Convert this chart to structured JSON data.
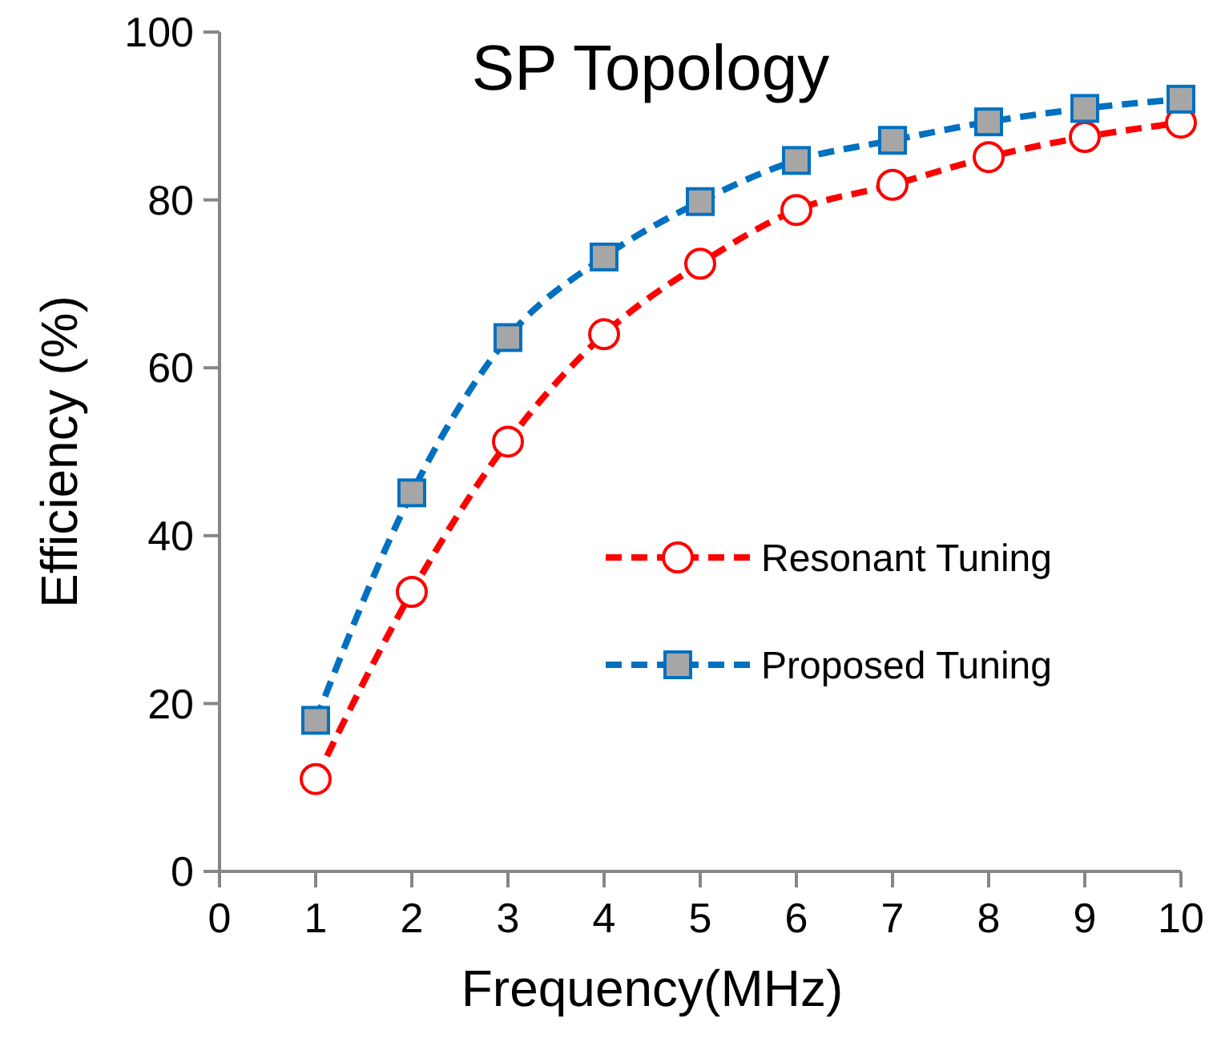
{
  "chart_data": {
    "type": "line",
    "title": "SP Topology",
    "xlabel": "Frequency(MHz)",
    "ylabel": "Efficiency (%)",
    "x": [
      1,
      2,
      3,
      4,
      5,
      6,
      7,
      8,
      9,
      10
    ],
    "series": [
      {
        "name": "Resonant Tuning",
        "color": "#ff0000",
        "marker": "circle",
        "line_style": "dashed",
        "values": [
          11.0,
          33.3,
          51.2,
          64.0,
          72.4,
          78.8,
          81.8,
          85.1,
          87.5,
          89.2
        ]
      },
      {
        "name": "Proposed Tuning",
        "color": "#0070c0",
        "marker": "square",
        "line_style": "dashed",
        "values": [
          18.0,
          45.1,
          63.6,
          73.2,
          79.8,
          84.7,
          87.1,
          89.3,
          90.9,
          92.0
        ]
      }
    ],
    "xlim": [
      0,
      10
    ],
    "xticks": [
      0,
      1,
      2,
      3,
      4,
      5,
      6,
      7,
      8,
      9,
      10
    ],
    "ylim": [
      0,
      100
    ],
    "yticks": [
      0,
      20,
      40,
      60,
      80,
      100
    ],
    "grid": false,
    "legend": "right"
  }
}
